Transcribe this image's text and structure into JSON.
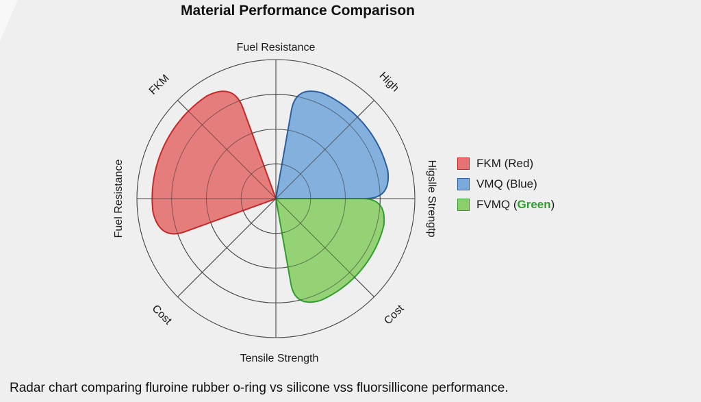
{
  "chart_data": {
    "type": "radar",
    "title": "Material Performance Comparison",
    "rings": 4,
    "spokes": 8,
    "axis_labels": [
      {
        "text": "Fuel Resistance",
        "direction": "top"
      },
      {
        "text": "High",
        "direction": "top-right"
      },
      {
        "text": "Higslle Strengtp",
        "direction": "right"
      },
      {
        "text": "Cost",
        "direction": "bottom-right"
      },
      {
        "text": "Tensile Strength",
        "direction": "bottom"
      },
      {
        "text": "Cost",
        "direction": "bottom-left"
      },
      {
        "text": "Fuel Resistance",
        "direction": "left"
      },
      {
        "text": "FKM",
        "direction": "top-left"
      }
    ],
    "series": [
      {
        "name": "FKM (Red)",
        "fill": "#e57373",
        "stroke": "#c62828",
        "sector": "left",
        "start_deg": 200,
        "end_deg": 110,
        "radius": 0.89
      },
      {
        "name": "VMQ (Blue)",
        "fill": "#7aaadb",
        "stroke": "#2b5e9e",
        "sector": "top-right",
        "start_deg": 80,
        "end_deg": 0,
        "radius": 0.83
      },
      {
        "name": "FVMQ (Green)",
        "fill": "#8ccf6a",
        "stroke": "#2e9e2e",
        "sector": "bottom-right",
        "start_deg": 0,
        "end_deg": -80,
        "radius": 0.8
      }
    ],
    "legend": {
      "position": "right",
      "items": [
        {
          "text": "FKM (Red)",
          "color": "#e57373",
          "border": "#c62828"
        },
        {
          "text": "VMQ (Blue)",
          "color": "#7aaadb",
          "border": "#2b5e9e"
        },
        {
          "text": "FVMQ (",
          "colored_text": "Green",
          "suffix": ")",
          "color": "#8ccf6a",
          "border": "#2e9e2e"
        }
      ]
    }
  },
  "caption": "Radar chart comparing fluroine rubber o-ring vs silicone vss fluorsillicone performance."
}
